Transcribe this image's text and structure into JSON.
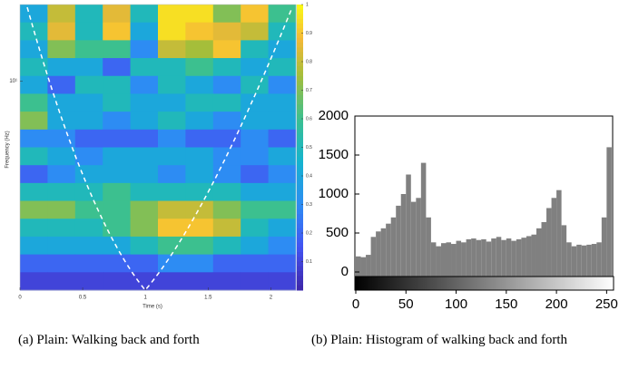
{
  "chart_data": [
    {
      "type": "heatmap",
      "caption": "(a) Plain: Walking back and forth",
      "xlabel": "Time (s)",
      "ylabel": "Frequency (Hz)",
      "xlim": [
        0,
        2.2
      ],
      "xticks": [
        0,
        0.5,
        1,
        1.5,
        2
      ],
      "ylim": [
        1.5,
        20
      ],
      "log_y": true,
      "yticks": [
        {
          "value": 10,
          "label": "10¹"
        }
      ],
      "zlim": [
        0,
        1
      ],
      "colorbar_ticks": [
        0.1,
        0.2,
        0.3,
        0.4,
        0.5,
        0.6,
        0.7,
        0.8,
        0.9,
        1
      ],
      "colormap": "parula",
      "values": [
        [
          0.4,
          0.8,
          0.5,
          0.85,
          0.5,
          0.95,
          0.95,
          0.7,
          0.9,
          0.6
        ],
        [
          0.5,
          0.85,
          0.5,
          0.9,
          0.4,
          0.95,
          0.9,
          0.85,
          0.8,
          0.5
        ],
        [
          0.4,
          0.7,
          0.6,
          0.6,
          0.3,
          0.8,
          0.75,
          0.9,
          0.5,
          0.4
        ],
        [
          0.5,
          0.4,
          0.4,
          0.2,
          0.5,
          0.5,
          0.6,
          0.5,
          0.4,
          0.5
        ],
        [
          0.4,
          0.2,
          0.5,
          0.5,
          0.3,
          0.5,
          0.4,
          0.3,
          0.5,
          0.3
        ],
        [
          0.6,
          0.4,
          0.4,
          0.5,
          0.4,
          0.4,
          0.5,
          0.5,
          0.4,
          0.4
        ],
        [
          0.7,
          0.4,
          0.4,
          0.3,
          0.4,
          0.5,
          0.4,
          0.3,
          0.4,
          0.4
        ],
        [
          0.3,
          0.3,
          0.2,
          0.2,
          0.2,
          0.3,
          0.2,
          0.2,
          0.3,
          0.2
        ],
        [
          0.5,
          0.4,
          0.3,
          0.4,
          0.4,
          0.4,
          0.4,
          0.3,
          0.3,
          0.4
        ],
        [
          0.2,
          0.3,
          0.4,
          0.4,
          0.4,
          0.3,
          0.4,
          0.3,
          0.2,
          0.3
        ],
        [
          0.5,
          0.5,
          0.5,
          0.6,
          0.5,
          0.5,
          0.5,
          0.5,
          0.4,
          0.4
        ],
        [
          0.7,
          0.7,
          0.6,
          0.6,
          0.7,
          0.8,
          0.8,
          0.7,
          0.6,
          0.6
        ],
        [
          0.5,
          0.5,
          0.5,
          0.6,
          0.7,
          0.9,
          0.9,
          0.8,
          0.5,
          0.4
        ],
        [
          0.4,
          0.4,
          0.4,
          0.4,
          0.5,
          0.6,
          0.6,
          0.5,
          0.4,
          0.3
        ],
        [
          0.2,
          0.2,
          0.2,
          0.2,
          0.2,
          0.3,
          0.3,
          0.2,
          0.2,
          0.2
        ],
        [
          0.1,
          0.1,
          0.1,
          0.1,
          0.1,
          0.1,
          0.1,
          0.1,
          0.1,
          0.1
        ]
      ]
    },
    {
      "type": "histogram",
      "caption": "(b) Plain: Histogram of walking back and forth",
      "color": "#808080",
      "xlim": [
        0,
        256
      ],
      "xticks": [
        0,
        50,
        100,
        150,
        200,
        250
      ],
      "ylim": [
        0,
        2000
      ],
      "yticks": [
        0,
        500,
        1000,
        1500,
        2000
      ],
      "bins": [
        0,
        5,
        10,
        15,
        20,
        25,
        30,
        35,
        40,
        45,
        50,
        55,
        60,
        65,
        70,
        75,
        80,
        85,
        90,
        95,
        100,
        105,
        110,
        115,
        120,
        125,
        130,
        135,
        140,
        145,
        150,
        155,
        160,
        165,
        170,
        175,
        180,
        185,
        190,
        195,
        200,
        205,
        210,
        215,
        220,
        225,
        230,
        235,
        240,
        245,
        250,
        255
      ],
      "values": [
        200,
        190,
        220,
        450,
        520,
        560,
        620,
        700,
        850,
        1000,
        1250,
        900,
        950,
        1400,
        700,
        380,
        330,
        370,
        380,
        360,
        400,
        380,
        420,
        430,
        410,
        420,
        390,
        430,
        450,
        410,
        430,
        400,
        420,
        440,
        460,
        480,
        560,
        640,
        820,
        950,
        1050,
        600,
        380,
        330,
        350,
        340,
        350,
        360,
        380,
        700,
        1600
      ]
    }
  ]
}
